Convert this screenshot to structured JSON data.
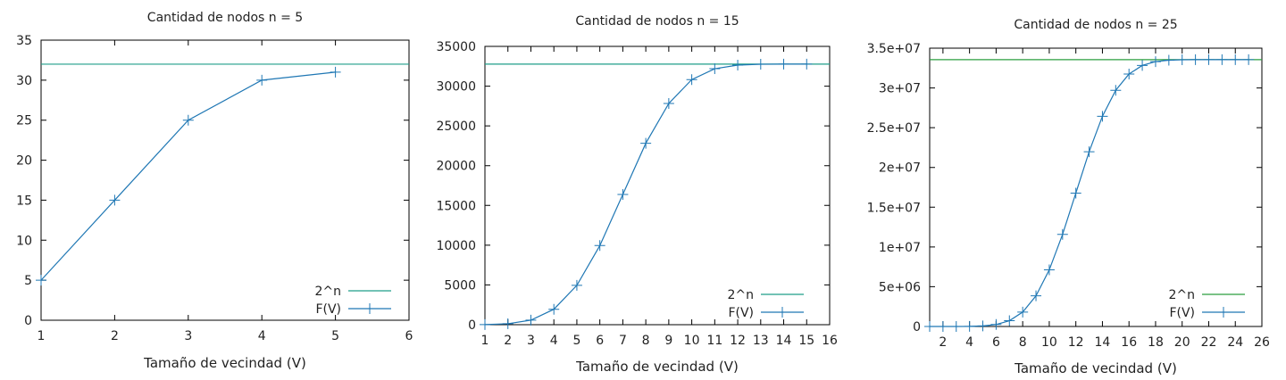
{
  "chart_data": [
    {
      "type": "line",
      "title": "Cantidad de nodos n = 5",
      "xlabel": "Tamaño de vecindad (V)",
      "ylabel": "",
      "xlim": [
        1,
        6
      ],
      "ylim": [
        0,
        35
      ],
      "xticks": [
        "1",
        "2",
        "3",
        "4",
        "5",
        "6"
      ],
      "yticks": [
        "0",
        "5",
        "10",
        "15",
        "20",
        "25",
        "30",
        "35"
      ],
      "legend_position": "bottom-right",
      "grid": false,
      "series": [
        {
          "name": "2^n",
          "style": "hline",
          "color": "#1f9e89",
          "y": 32
        },
        {
          "name": "F(V)",
          "style": "line-plus",
          "color": "#1f77b4",
          "x": [
            1,
            2,
            3,
            4,
            5
          ],
          "values": [
            5,
            15,
            25,
            30,
            31
          ]
        }
      ]
    },
    {
      "type": "line",
      "title": "Cantidad de nodos n = 15",
      "xlabel": "Tamaño de vecindad (V)",
      "ylabel": "",
      "xlim": [
        1,
        16
      ],
      "ylim": [
        0,
        35000
      ],
      "xticks": [
        "1",
        "2",
        "3",
        "4",
        "5",
        "6",
        "7",
        "8",
        "9",
        "10",
        "11",
        "12",
        "13",
        "14",
        "15",
        "16"
      ],
      "yticks": [
        "0",
        "5000",
        "10000",
        "15000",
        "20000",
        "25000",
        "30000",
        "35000"
      ],
      "legend_position": "bottom-right",
      "grid": false,
      "series": [
        {
          "name": "2^n",
          "style": "hline",
          "color": "#1f9e89",
          "y": 32768
        },
        {
          "name": "F(V)",
          "style": "line-plus",
          "color": "#1f77b4",
          "x": [
            1,
            2,
            3,
            4,
            5,
            6,
            7,
            8,
            9,
            10,
            11,
            12,
            13,
            14,
            15
          ],
          "values": [
            15,
            120,
            576,
            1941,
            4944,
            9949,
            16384,
            22819,
            27824,
            30827,
            32192,
            32647,
            32752,
            32767,
            32767
          ]
        }
      ]
    },
    {
      "type": "line",
      "title": "Cantidad de nodos n = 25",
      "xlabel": "Tamaño de vecindad (V)",
      "ylabel": "",
      "xlim": [
        1,
        26
      ],
      "ylim": [
        0,
        35000000
      ],
      "xticks": [
        "2",
        "4",
        "6",
        "8",
        "10",
        "12",
        "14",
        "16",
        "18",
        "20",
        "22",
        "24",
        "26"
      ],
      "yticks": [
        "0",
        "5e+06",
        "1e+07",
        "1.5e+07",
        "2e+07",
        "2.5e+07",
        "3e+07",
        "3.5e+07"
      ],
      "legend_position": "bottom-right",
      "grid": false,
      "series": [
        {
          "name": "2^n",
          "style": "hline",
          "color": "#2a9d3f",
          "y": 33554432
        },
        {
          "name": "F(V)",
          "style": "line-plus",
          "color": "#1f77b4",
          "x": [
            1,
            2,
            3,
            4,
            5,
            6,
            7,
            8,
            9,
            10,
            11,
            12,
            13,
            14,
            15,
            16,
            17,
            18,
            19,
            20,
            21,
            22,
            23,
            24,
            25
          ],
          "values": [
            25,
            325,
            2626,
            15276,
            68406,
            245506,
            726206,
            1807781,
            3850756,
            7119516,
            11576916,
            16777216,
            21977516,
            26434916,
            29703676,
            31746651,
            32828226,
            33308926,
            33486026,
            33539156,
            33551806,
            33554107,
            33554407,
            33554432,
            33554432
          ]
        }
      ]
    }
  ]
}
